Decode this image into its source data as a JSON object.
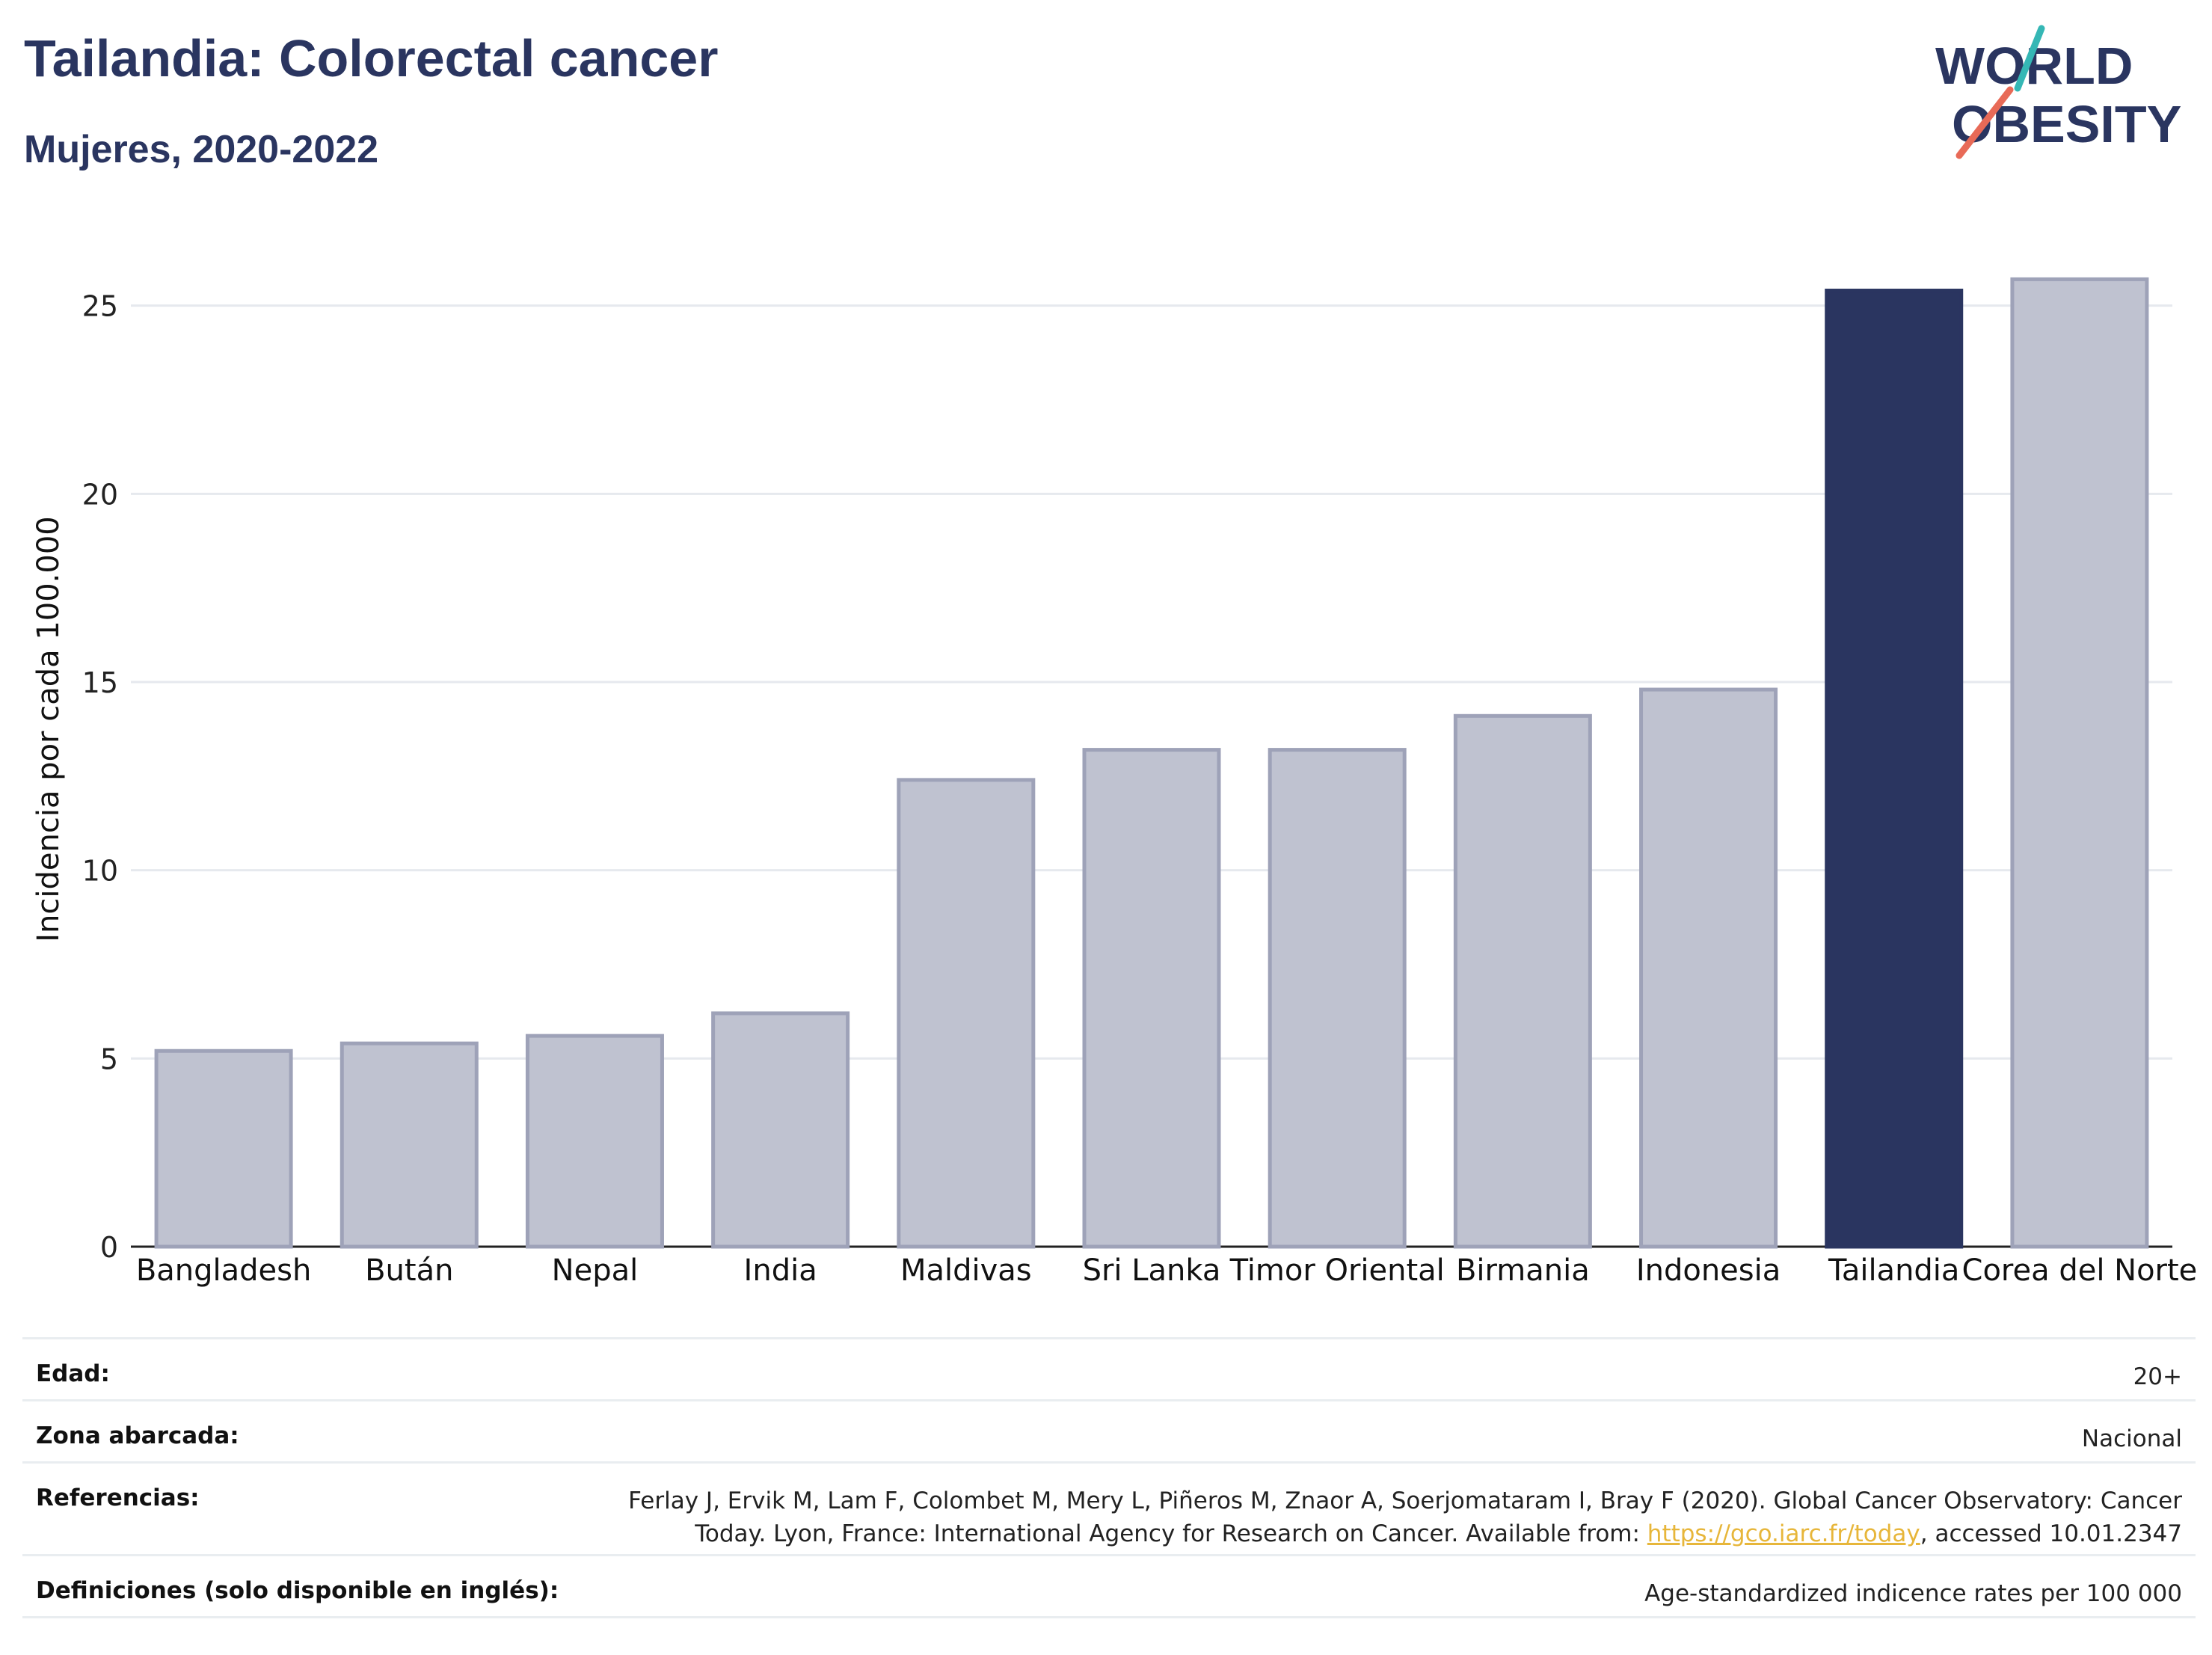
{
  "header": {
    "title": "Tailandia: Colorectal cancer",
    "subtitle": "Mujeres, 2020-2022",
    "logo_text_line1": "WORLD",
    "logo_text_line2": "OBESITY"
  },
  "colors": {
    "highlight": "#2a3560",
    "bar_fill": "#bfc2d0",
    "bar_stroke": "#9ea2b8",
    "link": "#e7b63a",
    "logo_teal": "#35b7b5",
    "logo_coral": "#e86a57"
  },
  "chart_data": {
    "type": "bar",
    "ylabel": "Incidencia por cada 100.000",
    "categories": [
      "Bangladesh",
      "Bután",
      "Nepal",
      "India",
      "Maldivas",
      "Sri Lanka",
      "Timor Oriental",
      "Birmania",
      "Indonesia",
      "Tailandia",
      "Corea del Norte"
    ],
    "values": [
      5.2,
      5.4,
      5.6,
      6.2,
      12.4,
      13.2,
      13.2,
      14.1,
      14.8,
      25.4,
      25.7
    ],
    "highlight": "Tailandia",
    "ylim": [
      0,
      27
    ],
    "yticks": [
      0,
      5,
      10,
      15,
      20,
      25
    ],
    "grid": true
  },
  "meta": {
    "age_label": "Edad:",
    "age_value": "20+",
    "area_label": "Zona abarcada:",
    "area_value": "Nacional",
    "refs_label": "Referencias:",
    "refs_line1": "Ferlay J, Ervik M, Lam F, Colombet M, Mery L, Piñeros M, Znaor A, Soerjomataram I, Bray F (2020). Global Cancer Observatory: Cancer",
    "refs_line2_pre": "Today. Lyon, France: International Agency for Research on Cancer. Available from: ",
    "refs_link": "https://gco.iarc.fr/today",
    "refs_line2_post": ", accessed 10.01.2347",
    "defs_label": "Definiciones (solo disponible en inglés):",
    "defs_value": "Age-standardized indicence rates per 100 000"
  }
}
